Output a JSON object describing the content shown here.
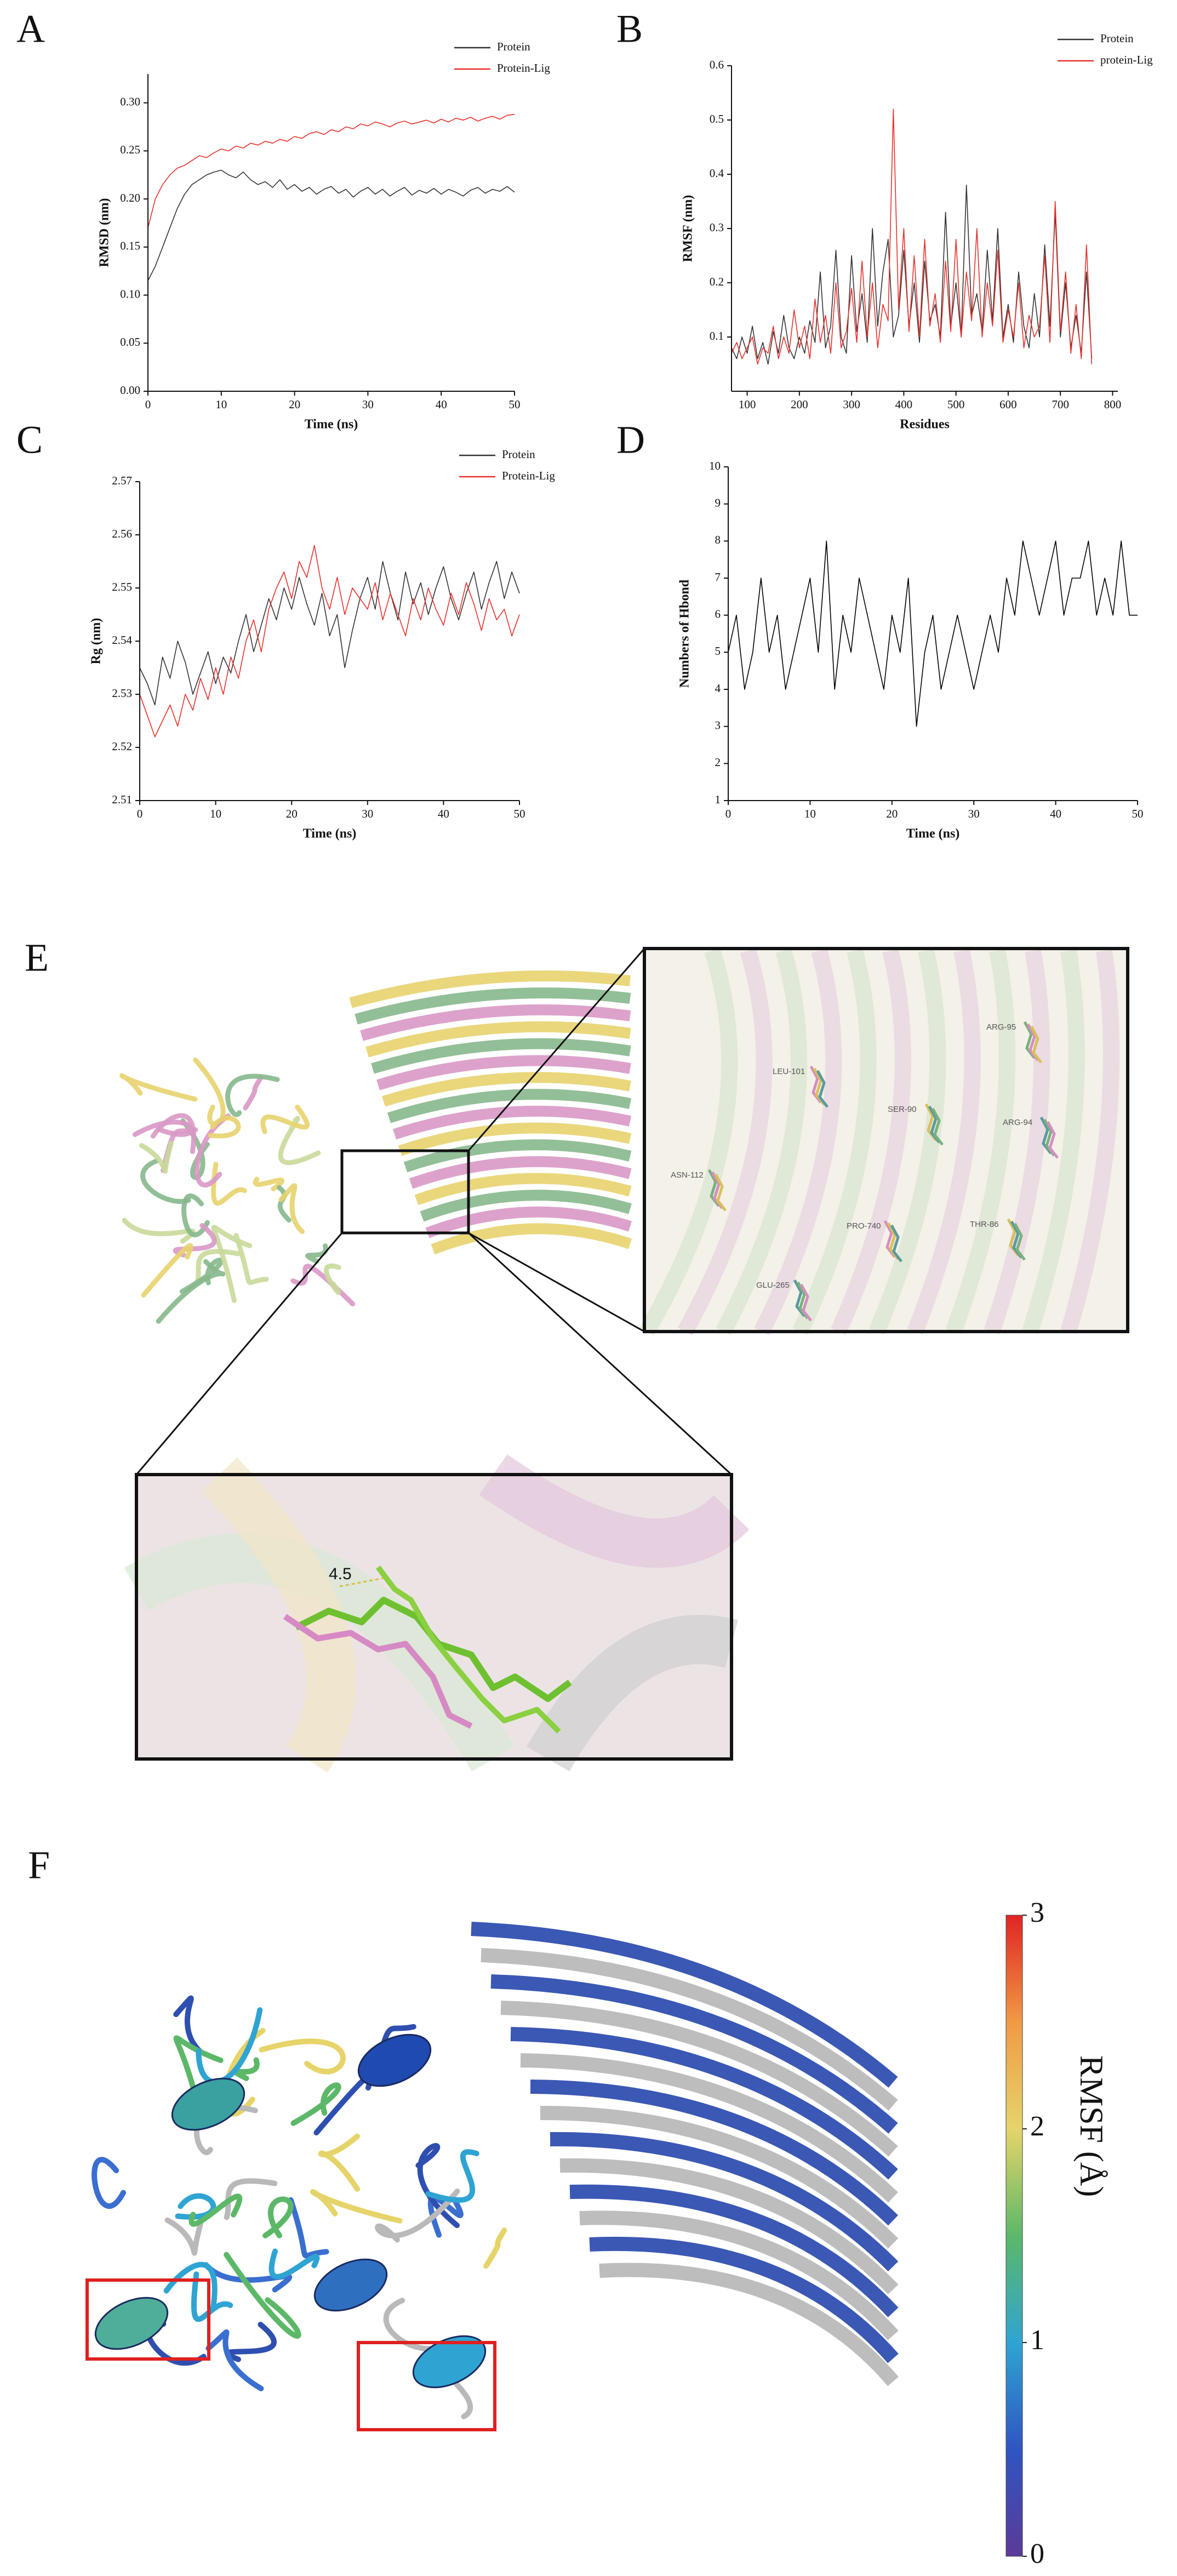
{
  "chart_data": [
    {
      "type": "line",
      "label": "A",
      "xlabel": "Time (ns)",
      "ylabel": "RMSD (nm)",
      "legend": "upper right",
      "xlim": [
        0,
        50
      ],
      "xticks": [
        0,
        10,
        20,
        30,
        40,
        50
      ],
      "ylim": [
        0,
        0.33
      ],
      "yticks": [
        {
          "value": 0,
          "label": "0.00"
        },
        {
          "value": 0.05,
          "label": "0.05"
        },
        {
          "value": 0.1,
          "label": "0.10"
        },
        {
          "value": 0.15,
          "label": "0.15"
        },
        {
          "value": 0.2,
          "label": "0.20"
        },
        {
          "value": 0.25,
          "label": "0.25"
        },
        {
          "value": 0.3,
          "label": "0.30"
        }
      ],
      "x": [
        0,
        1,
        2,
        3,
        4,
        5,
        6,
        7,
        8,
        9,
        10,
        11,
        12,
        13,
        14,
        15,
        16,
        17,
        18,
        19,
        20,
        21,
        22,
        23,
        24,
        25,
        26,
        27,
        28,
        29,
        30,
        31,
        32,
        33,
        34,
        35,
        36,
        37,
        38,
        39,
        40,
        41,
        42,
        43,
        44,
        45,
        46,
        47,
        48,
        49,
        50
      ],
      "series": [
        {
          "name": "Protein",
          "color": "#333333",
          "values": [
            0.115,
            0.13,
            0.15,
            0.17,
            0.19,
            0.205,
            0.215,
            0.22,
            0.225,
            0.228,
            0.23,
            0.225,
            0.222,
            0.228,
            0.22,
            0.215,
            0.218,
            0.212,
            0.22,
            0.21,
            0.215,
            0.208,
            0.212,
            0.205,
            0.21,
            0.213,
            0.206,
            0.21,
            0.202,
            0.208,
            0.212,
            0.205,
            0.21,
            0.203,
            0.208,
            0.212,
            0.204,
            0.209,
            0.206,
            0.211,
            0.205,
            0.21,
            0.207,
            0.203,
            0.209,
            0.212,
            0.206,
            0.21,
            0.208,
            0.213,
            0.207
          ]
        },
        {
          "name": "Protein-Lig",
          "color": "#e8302c",
          "values": [
            0.17,
            0.2,
            0.215,
            0.225,
            0.232,
            0.235,
            0.24,
            0.245,
            0.243,
            0.248,
            0.252,
            0.25,
            0.255,
            0.253,
            0.258,
            0.256,
            0.26,
            0.258,
            0.262,
            0.26,
            0.265,
            0.263,
            0.268,
            0.27,
            0.267,
            0.272,
            0.27,
            0.275,
            0.273,
            0.278,
            0.276,
            0.28,
            0.278,
            0.275,
            0.279,
            0.281,
            0.278,
            0.28,
            0.282,
            0.279,
            0.283,
            0.28,
            0.284,
            0.282,
            0.285,
            0.281,
            0.284,
            0.286,
            0.283,
            0.287,
            0.288
          ]
        }
      ]
    },
    {
      "type": "line",
      "label": "B",
      "xlabel": "Residues",
      "ylabel": "RMSF (nm)",
      "legend": "upper right",
      "xlim": [
        70,
        810
      ],
      "xticks": [
        100,
        200,
        300,
        400,
        500,
        600,
        700,
        800
      ],
      "ylim": [
        0,
        0.6
      ],
      "yticks": [
        0.1,
        0.2,
        0.3,
        0.4,
        0.5,
        0.6
      ],
      "x": [
        70,
        80,
        90,
        100,
        110,
        120,
        130,
        140,
        150,
        160,
        170,
        180,
        190,
        200,
        210,
        220,
        230,
        240,
        250,
        260,
        270,
        280,
        290,
        300,
        310,
        320,
        330,
        340,
        350,
        360,
        370,
        380,
        390,
        400,
        410,
        420,
        430,
        440,
        450,
        460,
        470,
        480,
        490,
        500,
        510,
        520,
        530,
        540,
        550,
        560,
        570,
        580,
        590,
        600,
        610,
        620,
        630,
        640,
        650,
        660,
        670,
        680,
        690,
        700,
        710,
        720,
        730,
        740,
        750,
        760
      ],
      "series": [
        {
          "name": "Protein",
          "color": "#333333",
          "values": [
            0.08,
            0.06,
            0.1,
            0.07,
            0.12,
            0.06,
            0.09,
            0.05,
            0.11,
            0.07,
            0.14,
            0.08,
            0.06,
            0.1,
            0.07,
            0.13,
            0.09,
            0.22,
            0.08,
            0.12,
            0.26,
            0.1,
            0.07,
            0.25,
            0.11,
            0.18,
            0.09,
            0.3,
            0.12,
            0.22,
            0.28,
            0.1,
            0.14,
            0.26,
            0.12,
            0.2,
            0.09,
            0.24,
            0.13,
            0.16,
            0.1,
            0.33,
            0.12,
            0.2,
            0.1,
            0.38,
            0.14,
            0.18,
            0.11,
            0.26,
            0.13,
            0.3,
            0.1,
            0.16,
            0.09,
            0.22,
            0.12,
            0.08,
            0.18,
            0.1,
            0.27,
            0.12,
            0.33,
            0.1,
            0.2,
            0.08,
            0.14,
            0.07,
            0.22,
            0.06
          ]
        },
        {
          "name": "protein-Lig",
          "color": "#e8302c",
          "values": [
            0.07,
            0.09,
            0.06,
            0.08,
            0.1,
            0.05,
            0.08,
            0.07,
            0.12,
            0.06,
            0.1,
            0.07,
            0.15,
            0.08,
            0.12,
            0.06,
            0.17,
            0.09,
            0.14,
            0.07,
            0.2,
            0.08,
            0.11,
            0.19,
            0.09,
            0.24,
            0.1,
            0.2,
            0.08,
            0.16,
            0.13,
            0.52,
            0.15,
            0.3,
            0.11,
            0.25,
            0.1,
            0.28,
            0.12,
            0.18,
            0.09,
            0.24,
            0.11,
            0.28,
            0.1,
            0.22,
            0.13,
            0.3,
            0.1,
            0.2,
            0.12,
            0.26,
            0.09,
            0.15,
            0.1,
            0.2,
            0.08,
            0.14,
            0.1,
            0.12,
            0.25,
            0.09,
            0.35,
            0.11,
            0.22,
            0.07,
            0.16,
            0.06,
            0.27,
            0.05
          ]
        }
      ]
    },
    {
      "type": "line",
      "label": "C",
      "xlabel": "Time (ns)",
      "ylabel": "Rg (nm)",
      "legend": "upper right",
      "xlim": [
        0,
        50
      ],
      "xticks": [
        0,
        10,
        20,
        30,
        40,
        50
      ],
      "ylim": [
        2.51,
        2.57
      ],
      "yticks": [
        2.51,
        2.52,
        2.53,
        2.54,
        2.55,
        2.56,
        2.57
      ],
      "x": [
        0,
        1,
        2,
        3,
        4,
        5,
        6,
        7,
        8,
        9,
        10,
        11,
        12,
        13,
        14,
        15,
        16,
        17,
        18,
        19,
        20,
        21,
        22,
        23,
        24,
        25,
        26,
        27,
        28,
        29,
        30,
        31,
        32,
        33,
        34,
        35,
        36,
        37,
        38,
        39,
        40,
        41,
        42,
        43,
        44,
        45,
        46,
        47,
        48,
        49,
        50
      ],
      "series": [
        {
          "name": "Protein",
          "color": "#333333",
          "values": [
            2.535,
            2.532,
            2.528,
            2.537,
            2.533,
            2.54,
            2.536,
            2.53,
            2.534,
            2.538,
            2.532,
            2.537,
            2.534,
            2.54,
            2.545,
            2.538,
            2.543,
            2.548,
            2.544,
            2.55,
            2.546,
            2.552,
            2.547,
            2.543,
            2.549,
            2.541,
            2.545,
            2.535,
            2.542,
            2.548,
            2.552,
            2.546,
            2.555,
            2.549,
            2.544,
            2.553,
            2.547,
            2.551,
            2.545,
            2.55,
            2.554,
            2.548,
            2.544,
            2.549,
            2.553,
            2.546,
            2.551,
            2.555,
            2.548,
            2.553,
            2.549
          ]
        },
        {
          "name": "Protein-Lig",
          "color": "#e8302c",
          "values": [
            2.53,
            2.526,
            2.522,
            2.525,
            2.528,
            2.524,
            2.53,
            2.527,
            2.533,
            2.529,
            2.535,
            2.53,
            2.537,
            2.533,
            2.54,
            2.544,
            2.538,
            2.546,
            2.55,
            2.553,
            2.548,
            2.555,
            2.552,
            2.558,
            2.55,
            2.546,
            2.552,
            2.545,
            2.55,
            2.548,
            2.546,
            2.551,
            2.544,
            2.549,
            2.545,
            2.541,
            2.548,
            2.544,
            2.55,
            2.546,
            2.543,
            2.549,
            2.545,
            2.551,
            2.547,
            2.542,
            2.548,
            2.544,
            2.546,
            2.541,
            2.545
          ]
        }
      ]
    },
    {
      "type": "line",
      "label": "D",
      "xlabel": "Time (ns)",
      "ylabel": "Numbers of Hbond",
      "xlim": [
        0,
        50
      ],
      "xticks": [
        0,
        10,
        20,
        30,
        40,
        50
      ],
      "ylim": [
        1,
        10
      ],
      "yticks": [
        1,
        2,
        3,
        4,
        5,
        6,
        7,
        8,
        9,
        10
      ],
      "x": [
        0,
        1,
        2,
        3,
        4,
        5,
        6,
        7,
        8,
        9,
        10,
        11,
        12,
        13,
        14,
        15,
        16,
        17,
        18,
        19,
        20,
        21,
        22,
        23,
        24,
        25,
        26,
        27,
        28,
        29,
        30,
        31,
        32,
        33,
        34,
        35,
        36,
        37,
        38,
        39,
        40,
        41,
        42,
        43,
        44,
        45,
        46,
        47,
        48,
        49,
        50
      ],
      "series": [
        {
          "color": "#000000",
          "values": [
            5,
            6,
            4,
            5,
            7,
            5,
            6,
            4,
            5,
            6,
            7,
            5,
            8,
            4,
            6,
            5,
            7,
            6,
            5,
            4,
            6,
            5,
            7,
            3,
            5,
            6,
            4,
            5,
            6,
            5,
            4,
            5,
            6,
            5,
            7,
            6,
            8,
            7,
            6,
            7,
            8,
            6,
            7,
            7,
            8,
            6,
            7,
            6,
            8,
            6,
            6
          ]
        }
      ]
    },
    {
      "type": "colorbar",
      "label": "F",
      "title": "RMSF (Å)",
      "ylim": [
        0,
        3
      ],
      "yticks": [
        0,
        1,
        2,
        3
      ],
      "colors": [
        "#5b3a98",
        "#2f55c2",
        "#2fa4d2",
        "#5cb868",
        "#e6d46a",
        "#f09a44",
        "#e02424"
      ]
    }
  ],
  "panel_E": {
    "label": "E",
    "residues": [
      "ARG-95",
      "LEU-101",
      "SER-90",
      "ARG-94",
      "ASN-112",
      "PRO-740",
      "THR-86",
      "GLU-265"
    ],
    "distance": 4.5
  }
}
